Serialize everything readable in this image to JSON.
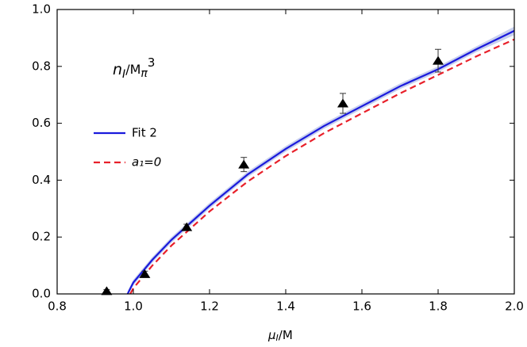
{
  "chart_data": {
    "type": "line",
    "annotation": [
      "n",
      "I",
      "/M",
      "π",
      "3"
    ],
    "xlabel": [
      "μ",
      "I",
      "/M"
    ],
    "xlim": [
      0.8,
      2.0
    ],
    "xticks": [
      0.8,
      {
        "value": 1,
        "label": "1.0"
      },
      1.2,
      1.4,
      1.6,
      1.8,
      {
        "value": 2,
        "label": "2.0"
      }
    ],
    "ylim": [
      0,
      1
    ],
    "yticks": [
      {
        "value": 0,
        "label": "0.0"
      },
      0.2,
      0.4,
      0.6,
      0.8,
      {
        "value": 1,
        "label": "1.0"
      }
    ],
    "band": {
      "color": "#c8d0ee",
      "x": [
        0.985,
        1.0,
        1.05,
        1.1,
        1.2,
        1.3,
        1.4,
        1.5,
        1.6,
        1.7,
        1.8,
        1.9,
        2.0
      ],
      "lower": [
        0,
        0.03,
        0.11,
        0.18,
        0.3,
        0.41,
        0.5,
        0.58,
        0.65,
        0.72,
        0.78,
        0.85,
        0.91
      ],
      "upper": [
        0.01,
        0.05,
        0.13,
        0.2,
        0.32,
        0.43,
        0.52,
        0.6,
        0.67,
        0.74,
        0.8,
        0.87,
        0.94
      ]
    },
    "series": [
      {
        "name": "Fit 2",
        "color": "#1a1adc",
        "dash": false,
        "x": [
          0.985,
          1.0,
          1.05,
          1.1,
          1.2,
          1.3,
          1.4,
          1.5,
          1.6,
          1.7,
          1.8,
          1.9,
          2.0
        ],
        "values": [
          0,
          0.04,
          0.12,
          0.19,
          0.31,
          0.42,
          0.51,
          0.59,
          0.66,
          0.73,
          0.79,
          0.86,
          0.925
        ]
      },
      {
        "name": "a₁=0",
        "color": "#e8202a",
        "dash": true,
        "x": [
          0.992,
          1.0,
          1.05,
          1.1,
          1.2,
          1.3,
          1.4,
          1.5,
          1.6,
          1.7,
          1.8,
          1.9,
          2.0
        ],
        "values": [
          0,
          0.02,
          0.1,
          0.17,
          0.29,
          0.395,
          0.485,
          0.565,
          0.635,
          0.705,
          0.77,
          0.835,
          0.895
        ]
      }
    ],
    "points": {
      "color": "#000000",
      "x": [
        0.93,
        1.03,
        1.14,
        1.29,
        1.55,
        1.8
      ],
      "values": [
        0.01,
        0.07,
        0.235,
        0.455,
        0.67,
        0.82
      ],
      "errors": [
        0.005,
        0.01,
        0.01,
        0.025,
        0.035,
        0.04
      ]
    }
  }
}
